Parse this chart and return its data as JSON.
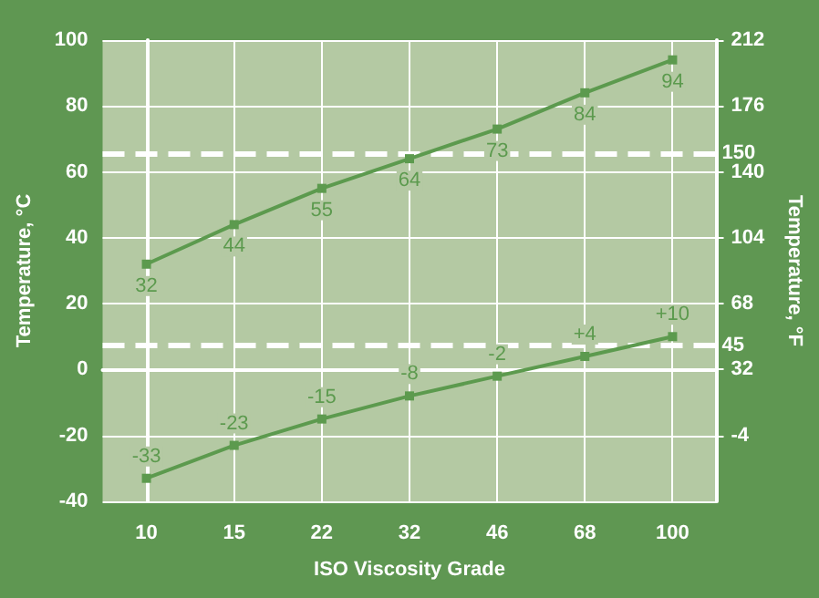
{
  "chart_data": {
    "type": "line",
    "xlabel": "ISO Viscosity Grade",
    "ylabel": "Temperature, °C",
    "y2label": "Temperature, °F",
    "categories": [
      "10",
      "15",
      "22",
      "32",
      "46",
      "68",
      "100"
    ],
    "series": [
      {
        "color": "#5c9a4e",
        "values": [
          32,
          44,
          55,
          64,
          73,
          84,
          94
        ],
        "value_labels": [
          "32",
          "44",
          "55",
          "64",
          "73",
          "84",
          "94"
        ]
      },
      {
        "color": "#5c9a4e",
        "values": [
          -33,
          -23,
          -15,
          -8,
          -2,
          4,
          10
        ],
        "value_labels": [
          "-33",
          "-23",
          "-15",
          "-8",
          "-2",
          "+4",
          "+10"
        ]
      }
    ],
    "ylim": [
      -40,
      100
    ],
    "yticks": [
      -40,
      -20,
      0,
      20,
      40,
      60,
      80,
      100
    ],
    "y2lim": [
      -40,
      212
    ],
    "y2ticks": [
      -4,
      32,
      68,
      104,
      140,
      176,
      212
    ],
    "ref_lines": [
      {
        "axis": "y2",
        "value": 150,
        "label": "150",
        "color": "#ffffff",
        "line_style": "dashed"
      },
      {
        "axis": "y2",
        "value": 45,
        "label": "45",
        "color": "#ffffff",
        "line_style": "dashed"
      }
    ],
    "grid": true,
    "marker": "square",
    "line_style": "solid"
  }
}
